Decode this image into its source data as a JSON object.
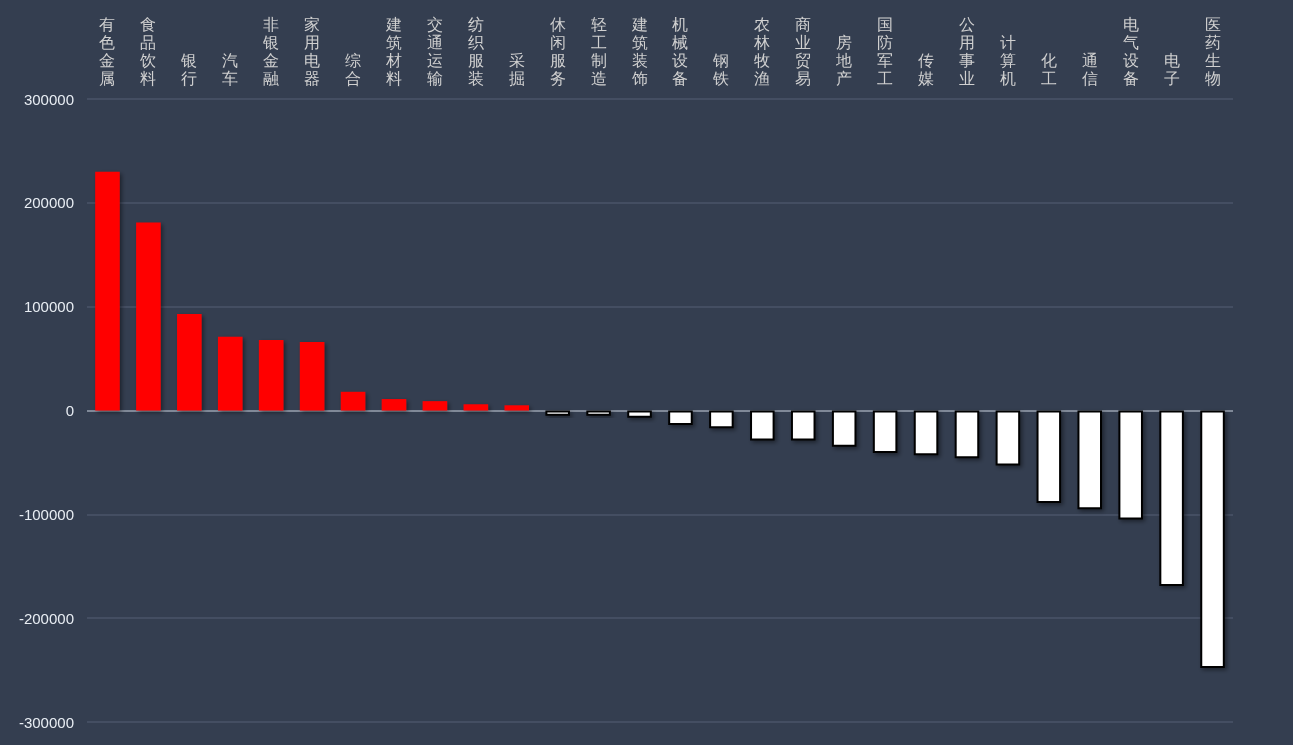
{
  "chart_data": {
    "type": "bar",
    "categories": [
      "有色金属",
      "食品饮料",
      "银行",
      "汽车",
      "非银金融",
      "家用电器",
      "综合",
      "建筑材料",
      "交通运输",
      "纺织服装",
      "采掘",
      "休闲服务",
      "轻工制造",
      "建筑装饰",
      "机械设备",
      "钢铁",
      "农林牧渔",
      "商业贸易",
      "房地产",
      "国防军工",
      "传媒",
      "公用事业",
      "计算机",
      "化工",
      "通信",
      "电气设备",
      "电子",
      "医药生物"
    ],
    "values": [
      230000,
      181000,
      93000,
      71000,
      68000,
      66000,
      18000,
      11000,
      9000,
      6000,
      5000,
      -5000,
      -5000,
      -7000,
      -14000,
      -17000,
      -29000,
      -29000,
      -35000,
      -41000,
      -43000,
      -46000,
      -53000,
      -89000,
      -95000,
      -105000,
      -169000,
      -248000
    ],
    "colors": [
      "#ff0000",
      "#ff0000",
      "#ff0000",
      "#ff0000",
      "#ff0000",
      "#ff0000",
      "#ff0000",
      "#ff0000",
      "#ff0000",
      "#ff0000",
      "#ff0000",
      "#ffffff",
      "#ffffff",
      "#ffffff",
      "#ffffff",
      "#ffffff",
      "#ffffff",
      "#ffffff",
      "#ffffff",
      "#ffffff",
      "#ffffff",
      "#ffffff",
      "#ffffff",
      "#ffffff",
      "#ffffff",
      "#ffffff",
      "#ffffff",
      "#ffffff"
    ],
    "ylim": [
      -300000,
      300000
    ],
    "yticks": [
      -300000,
      -200000,
      -100000,
      0,
      100000,
      200000,
      300000
    ],
    "grid": "y"
  }
}
